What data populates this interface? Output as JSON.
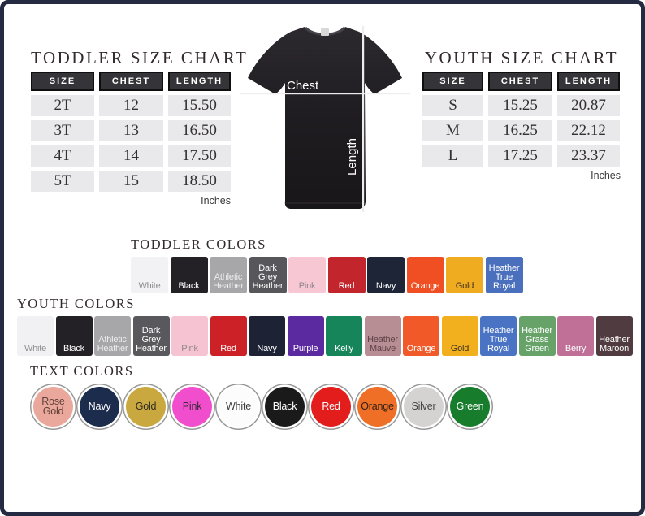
{
  "chart_data": [
    {
      "type": "table",
      "title": "TODDLER SIZE CHART",
      "columns": [
        "SIZE",
        "CHEST",
        "LENGTH"
      ],
      "rows": [
        [
          "2T",
          "12",
          "15.50"
        ],
        [
          "3T",
          "13",
          "16.50"
        ],
        [
          "4T",
          "14",
          "17.50"
        ],
        [
          "5T",
          "15",
          "18.50"
        ]
      ],
      "units": "Inches"
    },
    {
      "type": "table",
      "title": "YOUTH SIZE CHART",
      "columns": [
        "SIZE",
        "CHEST",
        "LENGTH"
      ],
      "rows": [
        [
          "S",
          "15.25",
          "20.87"
        ],
        [
          "M",
          "16.25",
          "22.12"
        ],
        [
          "L",
          "17.25",
          "23.37"
        ]
      ],
      "units": "Inches"
    }
  ],
  "shirt_diagram": {
    "chest_label": "Chest",
    "length_label": "Length",
    "shirt_color": "#201d22",
    "line_color": "#ededed"
  },
  "toddler_colors": {
    "title": "TODDLER COLORS",
    "swatches": [
      {
        "label": "White",
        "bg": "#f2f1f3",
        "fg": "#8f8f91"
      },
      {
        "label": "Black",
        "bg": "#232126",
        "fg": "#ffffff"
      },
      {
        "label": "Athletic Heather",
        "bg": "#a7a7a9",
        "fg": "#ededed"
      },
      {
        "label": "Dark Grey Heather",
        "bg": "#56565b",
        "fg": "#ffffff"
      },
      {
        "label": "Pink",
        "bg": "#f7c7d4",
        "fg": "#8d868c"
      },
      {
        "label": "Red",
        "bg": "#c2262c",
        "fg": "#ffffff"
      },
      {
        "label": "Navy",
        "bg": "#1d2537",
        "fg": "#ffffff"
      },
      {
        "label": "Orange",
        "bg": "#f04f23",
        "fg": "#ffffff"
      },
      {
        "label": "Gold",
        "bg": "#f0ac21",
        "fg": "#3f3427"
      },
      {
        "label": "Heather True Royal",
        "bg": "#4a70bd",
        "fg": "#ffffff"
      }
    ]
  },
  "youth_colors": {
    "title": "YOUTH COLORS",
    "swatches": [
      {
        "label": "White",
        "bg": "#f1f0f2",
        "fg": "#8f8f91"
      },
      {
        "label": "Black",
        "bg": "#232126",
        "fg": "#ffffff"
      },
      {
        "label": "Athletic Heather",
        "bg": "#a7a7a9",
        "fg": "#ededed"
      },
      {
        "label": "Dark Grey Heather",
        "bg": "#58585d",
        "fg": "#ffffff"
      },
      {
        "label": "Pink",
        "bg": "#f5c3d2",
        "fg": "#8d868c"
      },
      {
        "label": "Red",
        "bg": "#cb2127",
        "fg": "#ffffff"
      },
      {
        "label": "Navy",
        "bg": "#1e2235",
        "fg": "#ffffff"
      },
      {
        "label": "Purple",
        "bg": "#5b2aa0",
        "fg": "#ffffff"
      },
      {
        "label": "Kelly",
        "bg": "#17855a",
        "fg": "#ffffff"
      },
      {
        "label": "Heather Mauve",
        "bg": "#b78e94",
        "fg": "#5e4147"
      },
      {
        "label": "Orange",
        "bg": "#f15a28",
        "fg": "#ffffff"
      },
      {
        "label": "Gold",
        "bg": "#f2b01e",
        "fg": "#3f3427"
      },
      {
        "label": "Heather True Royal",
        "bg": "#4a73c4",
        "fg": "#ffffff"
      },
      {
        "label": "Heather Grass Green",
        "bg": "#67a369",
        "fg": "#ffffff"
      },
      {
        "label": "Berry",
        "bg": "#c06f96",
        "fg": "#ffffff"
      },
      {
        "label": "Heather Maroon",
        "bg": "#503b40",
        "fg": "#ffffff"
      }
    ]
  },
  "text_colors": {
    "title": "TEXT COLORS",
    "circles": [
      {
        "label": "Rose Gold",
        "bg": "#eaa89c",
        "fg": "#5f4038"
      },
      {
        "label": "Navy",
        "bg": "#1c2c4c",
        "fg": "#ffffff"
      },
      {
        "label": "Gold",
        "bg": "#c9a93f",
        "fg": "#2e2a20"
      },
      {
        "label": "Pink",
        "bg": "#f14ecd",
        "fg": "#3b2936"
      },
      {
        "label": "White",
        "bg": "#fcfcfc",
        "fg": "#3f3f3f"
      },
      {
        "label": "Black",
        "bg": "#1a1a1a",
        "fg": "#ffffff"
      },
      {
        "label": "Red",
        "bg": "#e31c1c",
        "fg": "#ffffff"
      },
      {
        "label": "Orange",
        "bg": "#f06f26",
        "fg": "#302117"
      },
      {
        "label": "Silver",
        "bg": "#d5d3d1",
        "fg": "#474747"
      },
      {
        "label": "Green",
        "bg": "#177d2d",
        "fg": "#ffffff"
      }
    ]
  }
}
